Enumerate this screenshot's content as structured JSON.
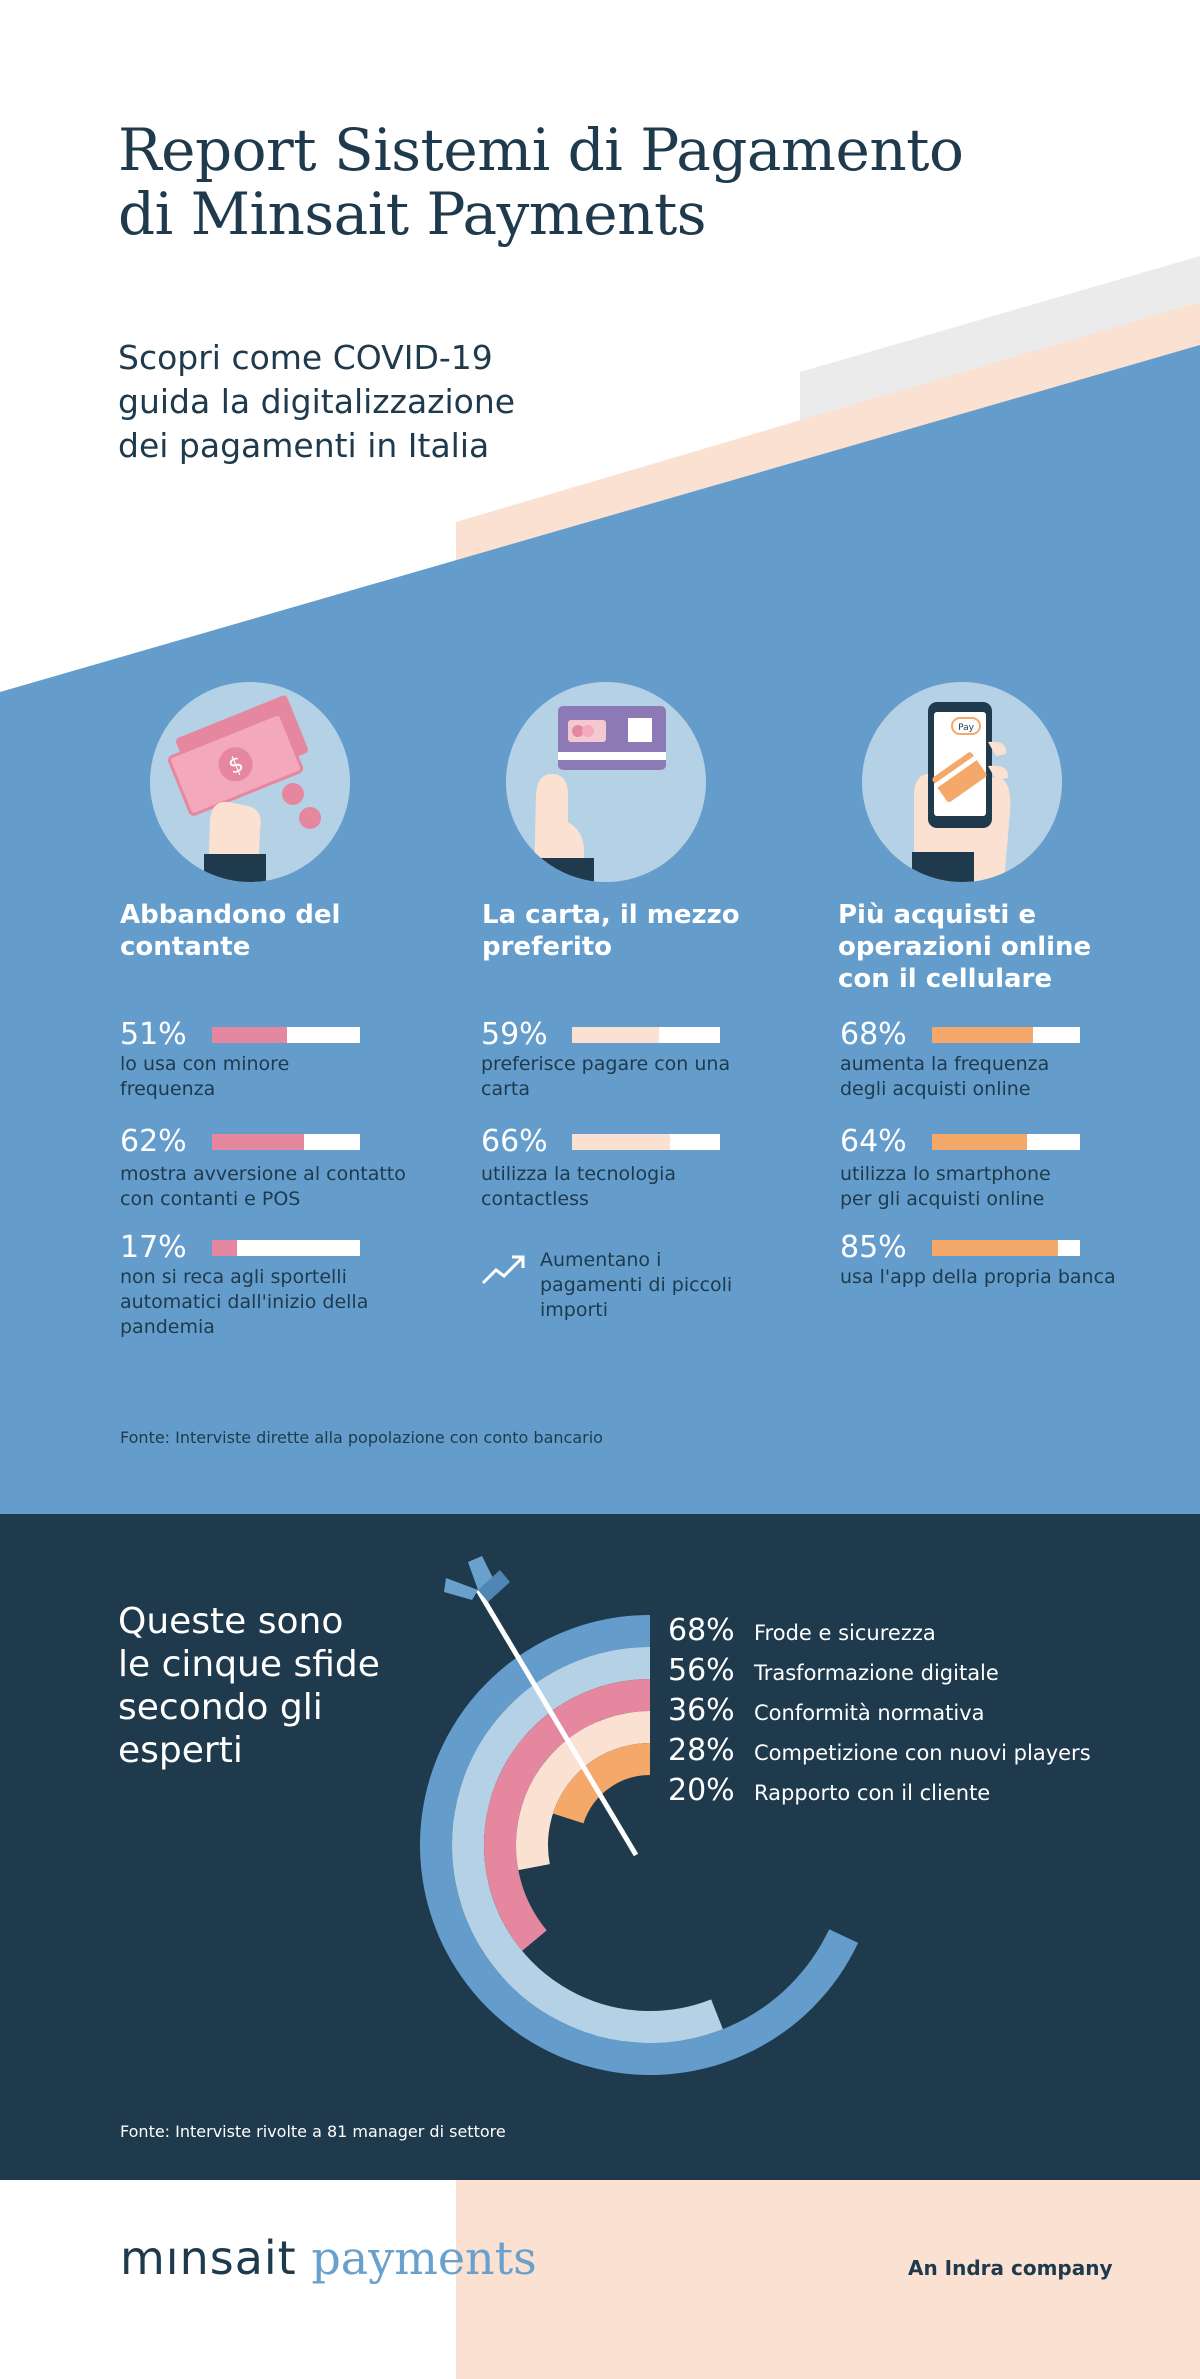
{
  "header": {
    "title_line1": "Report Sistemi di Pagamento",
    "title_line2": "di Minsait Payments",
    "subtitle_line1": "Scopri come COVID-19",
    "subtitle_line2": "guida la digitalizzazione",
    "subtitle_line3": "dei pagamenti in Italia"
  },
  "colors": {
    "blue": "#649dcb",
    "light_blue": "#b5d1e6",
    "navy": "#1e3a4c",
    "pink": "#e5889f",
    "peach": "#fbe1d2",
    "orange": "#f4a869",
    "gray": "#ebebeb"
  },
  "columns": [
    {
      "icon": "cash-hand-icon",
      "title_line1": "Abbandono del",
      "title_line2": "contante",
      "title_line3": "",
      "stats": [
        {
          "pct": "51%",
          "value": 0.51,
          "desc_line1": "lo usa con minore",
          "desc_line2": "frequenza",
          "desc_line3": ""
        },
        {
          "pct": "62%",
          "value": 0.62,
          "desc_line1": "mostra avversione al contatto",
          "desc_line2": "con contanti e POS",
          "desc_line3": ""
        },
        {
          "pct": "17%",
          "value": 0.17,
          "desc_line1": "non si reca agli sportelli",
          "desc_line2": "automatici dall'inizio della",
          "desc_line3": "pandemia"
        }
      ]
    },
    {
      "icon": "card-hand-icon",
      "title_line1": "La carta, il mezzo",
      "title_line2": "preferito",
      "title_line3": "",
      "stats": [
        {
          "pct": "59%",
          "value": 0.59,
          "desc_line1": "preferisce pagare con una",
          "desc_line2": "carta",
          "desc_line3": ""
        },
        {
          "pct": "66%",
          "value": 0.66,
          "desc_line1": "utilizza la tecnologia",
          "desc_line2": "contactless",
          "desc_line3": ""
        }
      ],
      "trend": {
        "icon": "trend-up-icon",
        "line1": "Aumentano i",
        "line2": "pagamenti di piccoli",
        "line3": "importi"
      }
    },
    {
      "icon": "phone-pay-icon",
      "title_line1": "Più acquisti e",
      "title_line2": "operazioni online",
      "title_line3": "con il cellulare",
      "stats": [
        {
          "pct": "68%",
          "value": 0.68,
          "desc_line1": "aumenta la frequenza",
          "desc_line2": "degli acquisti online",
          "desc_line3": ""
        },
        {
          "pct": "64%",
          "value": 0.64,
          "desc_line1": "utilizza lo smartphone",
          "desc_line2": "per gli acquisti online",
          "desc_line3": ""
        },
        {
          "pct": "85%",
          "value": 0.85,
          "desc_line1": "usa l'app della propria banca",
          "desc_line2": "",
          "desc_line3": ""
        }
      ]
    }
  ],
  "icon_labels": {
    "pay_badge": "Pay"
  },
  "source1": "Fonte: Interviste dirette alla popolazione con conto bancario",
  "challenges": {
    "title_line1": "Queste sono",
    "title_line2": "le cinque sfide",
    "title_line3": "secondo gli",
    "title_line4": "esperti",
    "source": "Fonte: Interviste rivolte a 81 manager di settore"
  },
  "chart_data": {
    "type": "radial-bar",
    "title": "",
    "unit": "%",
    "categories": [
      "Frode e sicurezza",
      "Trasformazione digitale",
      "Conformità normativa",
      "Competizione con nuovi players",
      "Rapporto con il cliente"
    ],
    "values": [
      68,
      56,
      36,
      28,
      20
    ],
    "value_labels": [
      "68%",
      "56%",
      "36%",
      "28%",
      "20%"
    ],
    "colors": [
      "#649dcb",
      "#b5d1e6",
      "#e5889f",
      "#fbe1d2",
      "#f4a869"
    ],
    "legend_position": "right of rings",
    "decoration": "arrow-dart-icon"
  },
  "footer": {
    "logo_main": "mınsait",
    "logo_suffix": " payments",
    "company": "An Indra company"
  }
}
